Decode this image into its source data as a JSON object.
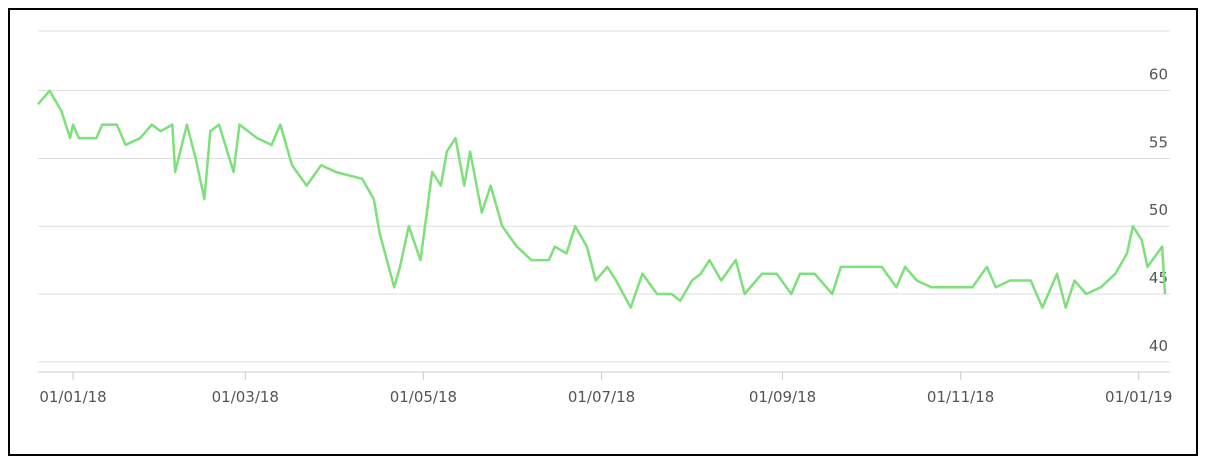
{
  "chart_data": {
    "type": "line",
    "x": [
      "20/12/17",
      "24/12/17",
      "28/12/17",
      "31/12/17",
      "01/01/18",
      "03/01/18",
      "09/01/18",
      "11/01/18",
      "16/01/18",
      "19/01/18",
      "24/01/18",
      "28/01/18",
      "31/01/18",
      "04/02/18",
      "05/02/18",
      "09/02/18",
      "12/02/18",
      "15/02/18",
      "17/02/18",
      "20/02/18",
      "25/02/18",
      "27/02/18",
      "05/03/18",
      "10/03/18",
      "13/03/18",
      "17/03/18",
      "22/03/18",
      "27/03/18",
      "01/04/18",
      "10/04/18",
      "14/04/18",
      "16/04/18",
      "21/04/18",
      "23/04/18",
      "26/04/18",
      "30/04/18",
      "04/05/18",
      "07/05/18",
      "09/05/18",
      "12/05/18",
      "15/05/18",
      "17/05/18",
      "21/05/18",
      "24/05/18",
      "28/05/18",
      "02/06/18",
      "07/06/18",
      "13/06/18",
      "15/06/18",
      "19/06/18",
      "22/06/18",
      "26/06/18",
      "29/06/18",
      "03/07/18",
      "06/07/18",
      "11/07/18",
      "15/07/18",
      "20/07/18",
      "25/07/18",
      "28/07/18",
      "01/08/18",
      "04/08/18",
      "07/08/18",
      "11/08/18",
      "16/08/18",
      "19/08/18",
      "25/08/18",
      "30/08/18",
      "04/09/18",
      "07/09/18",
      "12/09/18",
      "18/09/18",
      "21/09/18",
      "05/10/18",
      "10/10/18",
      "13/10/18",
      "17/10/18",
      "22/10/18",
      "29/10/18",
      "05/11/18",
      "10/11/18",
      "13/11/18",
      "18/11/18",
      "25/11/18",
      "29/11/18",
      "04/12/18",
      "07/12/18",
      "10/12/18",
      "14/12/18",
      "19/12/18",
      "24/12/18",
      "28/12/18",
      "30/12/18",
      "02/01/19",
      "04/01/19",
      "09/01/19",
      "10/01/19"
    ],
    "series": [
      {
        "color": "#7ee07a",
        "values": [
          59,
          60,
          58.5,
          56.5,
          57.5,
          56.5,
          56.5,
          57.5,
          57.5,
          56,
          56.5,
          57.5,
          57,
          57.5,
          54,
          57.5,
          55,
          52,
          57,
          57.5,
          54,
          57.5,
          56.5,
          56,
          57.5,
          54.5,
          53,
          54.5,
          54,
          53.5,
          52,
          49.5,
          45.5,
          47,
          50,
          47.5,
          54,
          53,
          55.5,
          56.5,
          53,
          55.5,
          51,
          53,
          50,
          48.5,
          47.5,
          47.5,
          48.5,
          48,
          50,
          48.5,
          46,
          47,
          46,
          44,
          46.5,
          45,
          45,
          44.5,
          46,
          46.5,
          47.5,
          46,
          47.5,
          45,
          46.5,
          46.5,
          45,
          46.5,
          46.5,
          45,
          47,
          47,
          45.5,
          47,
          46,
          45.5,
          45.5,
          45.5,
          47,
          45.5,
          46,
          46,
          44,
          46.5,
          44,
          46,
          45,
          45.5,
          46.5,
          48,
          50,
          49,
          47,
          48.5,
          45
        ]
      }
    ],
    "xlim": [
      "20/12/17",
      "10/01/19"
    ],
    "xticks": [
      "01/01/18",
      "01/03/18",
      "01/05/18",
      "01/07/18",
      "01/09/18",
      "01/11/18",
      "01/01/19"
    ],
    "ylim": [
      39.25,
      64.4
    ],
    "yticks": [
      40,
      45,
      50,
      55,
      60
    ],
    "grid": true
  }
}
